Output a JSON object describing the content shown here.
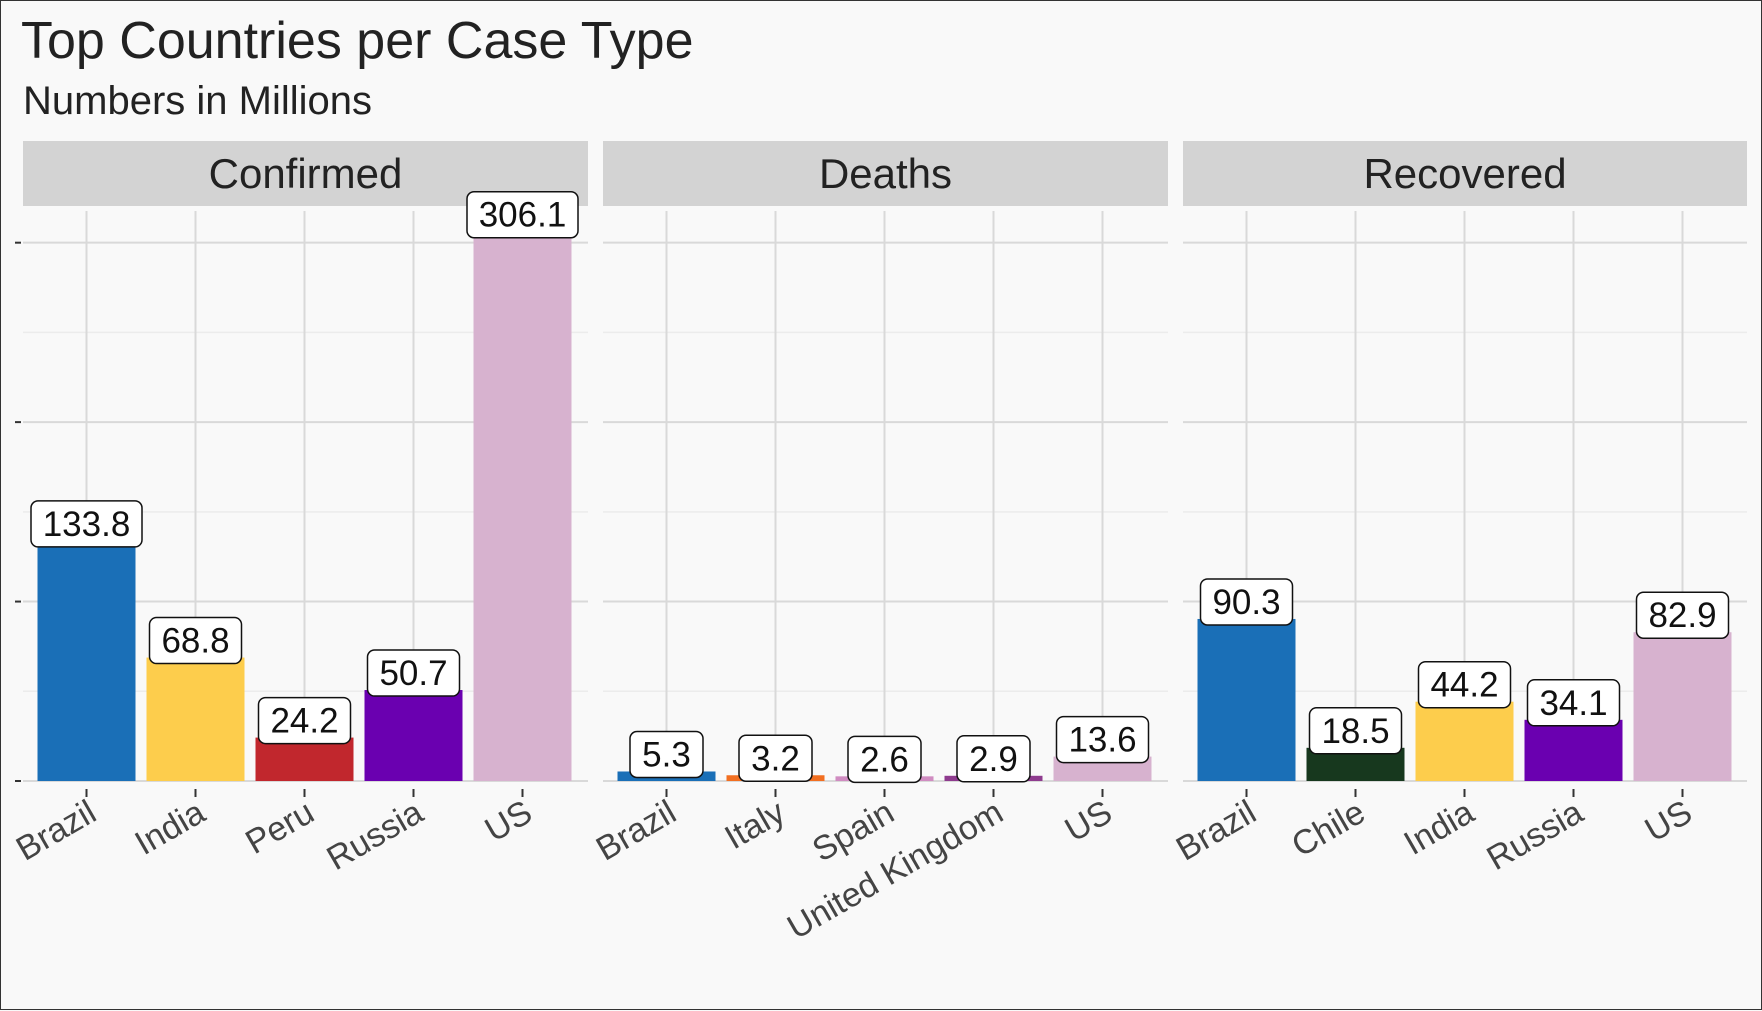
{
  "title": "Top Countries per Case Type",
  "subtitle": "Numbers in Millions",
  "colors": {
    "Brazil": "#1a6fb7",
    "India": "#fdcd4c",
    "Peru": "#c1272d",
    "Russia": "#6a00b0",
    "US": "#d7b2cf",
    "Italy": "#f26f21",
    "Spain": "#d08cc1",
    "United Kingdom": "#8e3b8e",
    "Chile": "#17381e"
  },
  "chart_data": [
    {
      "type": "bar",
      "facet": "Confirmed",
      "categories": [
        "Brazil",
        "India",
        "Peru",
        "Russia",
        "US"
      ],
      "values": [
        133.8,
        68.8,
        24.2,
        50.7,
        306.1
      ],
      "labels": [
        "133.8",
        "68.8",
        "24.2",
        "50.7",
        "306.1"
      ],
      "ylim": [
        0,
        330
      ]
    },
    {
      "type": "bar",
      "facet": "Deaths",
      "categories": [
        "Brazil",
        "Italy",
        "Spain",
        "United Kingdom",
        "US"
      ],
      "values": [
        5.3,
        3.2,
        2.6,
        2.9,
        13.6
      ],
      "labels": [
        "5.3",
        "3.2",
        "2.6",
        "2.9",
        "13.6"
      ],
      "ylim": [
        0,
        330
      ]
    },
    {
      "type": "bar",
      "facet": "Recovered",
      "categories": [
        "Brazil",
        "Chile",
        "India",
        "Russia",
        "US"
      ],
      "values": [
        90.3,
        18.5,
        44.2,
        34.1,
        82.9
      ],
      "labels": [
        "90.3",
        "18.5",
        "44.2",
        "34.1",
        "82.9"
      ],
      "ylim": [
        0,
        330
      ]
    }
  ]
}
